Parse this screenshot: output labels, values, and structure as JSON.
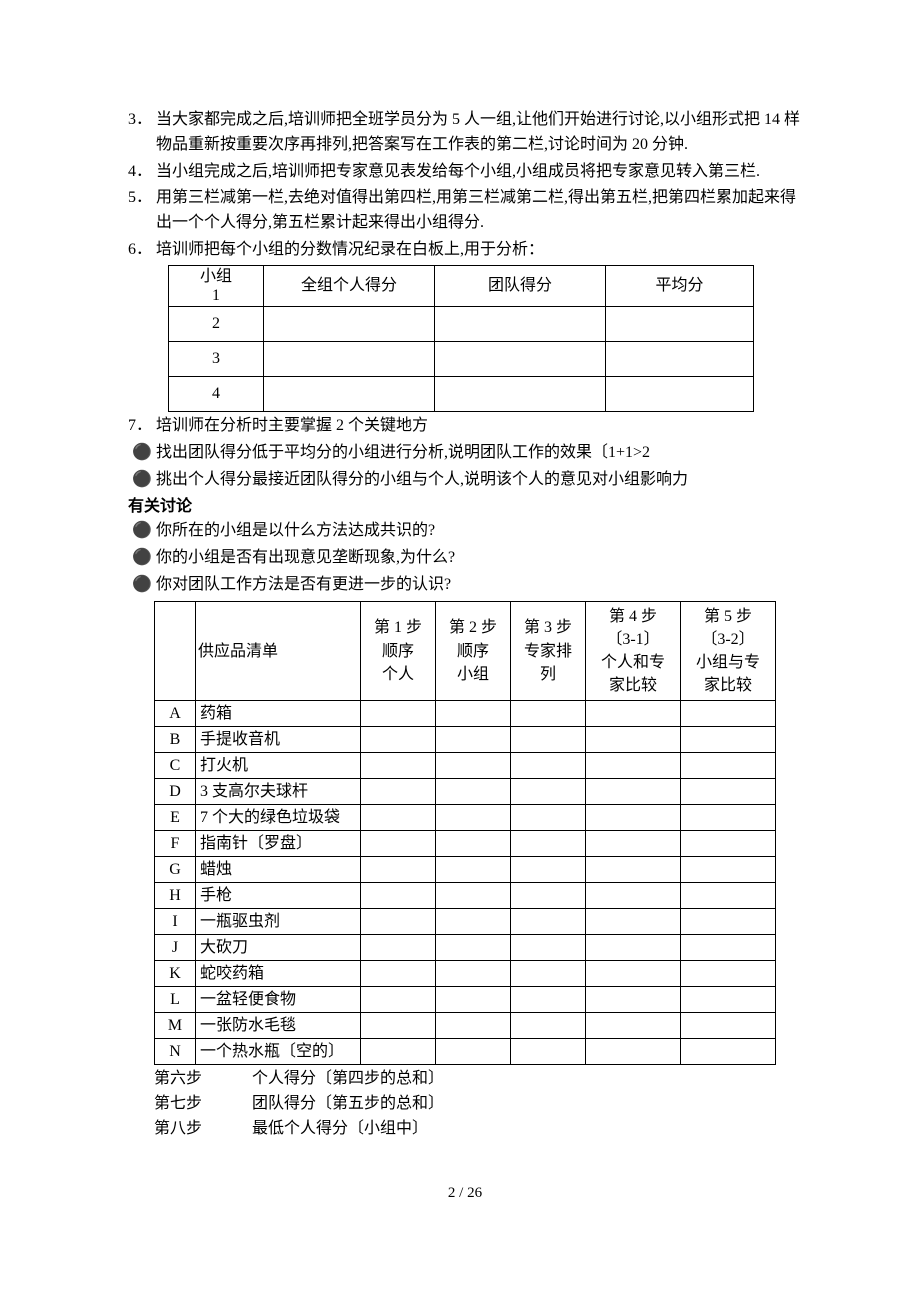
{
  "list1": {
    "items": [
      {
        "num": "3．",
        "text": "当大家都完成之后,培训师把全班学员分为 5 人一组,让他们开始进行讨论,以小组形式把 14 样物品重新按重要次序再排列,把答案写在工作表的第二栏,讨论时间为 20 分钟."
      },
      {
        "num": "4．",
        "text": "当小组完成之后,培训师把专家意见表发给每个小组,小组成员将把专家意见转入第三栏."
      },
      {
        "num": "5．",
        "text": "用第三栏减第一栏,去绝对值得出第四栏,用第三栏减第二栏,得出第五栏,把第四栏累加起来得出一个个人得分,第五栏累计起来得出小组得分."
      },
      {
        "num": "6．",
        "text": "培训师把每个小组的分数情况纪录在白板上,用于分析："
      }
    ]
  },
  "table1": {
    "headers": {
      "c0_a": "小组",
      "c0_b": "1",
      "c1": "全组个人得分",
      "c2": "团队得分",
      "c3": "平均分"
    },
    "rows": [
      {
        "c0": "2"
      },
      {
        "c0": "3"
      },
      {
        "c0": "4"
      }
    ]
  },
  "item7": {
    "num": "7．",
    "text": "培训师在分析时主要掌握 2 个关键地方"
  },
  "bullets1": [
    "找出团队得分低于平均分的小组进行分析,说明团队工作的效果〔1+1>2",
    "挑出个人得分最接近团队得分的小组与个人,说明该个人的意见对小组影响力"
  ],
  "discussHead": "有关讨论",
  "bullets2": [
    "你所在的小组是以什么方法达成共识的?",
    "你的小组是否有出现意见垄断现象,为什么?",
    "你对团队工作方法是否有更进一步的认识?"
  ],
  "table2": {
    "headers": {
      "item": "供应品清单",
      "s1": "第 1 步\n顺序\n个人",
      "s2": "第 2 步\n顺序\n小组",
      "s3": "第 3 步\n专家排列",
      "s4": "第 4 步\n〔3-1〕\n个人和专家比较",
      "s5": "第 5 步\n〔3-2〕\n小组与专家比较"
    },
    "rows": [
      {
        "code": "A",
        "item": "药箱"
      },
      {
        "code": "B",
        "item": "手提收音机"
      },
      {
        "code": "C",
        "item": "打火机"
      },
      {
        "code": "D",
        "item": "3 支高尔夫球杆"
      },
      {
        "code": "E",
        "item": "7 个大的绿色垃圾袋"
      },
      {
        "code": "F",
        "item": "指南针〔罗盘〕"
      },
      {
        "code": "G",
        "item": "蜡烛"
      },
      {
        "code": "H",
        "item": "手枪"
      },
      {
        "code": "I",
        "item": "一瓶驱虫剂"
      },
      {
        "code": "J",
        "item": "大砍刀"
      },
      {
        "code": "K",
        "item": "蛇咬药箱"
      },
      {
        "code": "L",
        "item": "一盆轻便食物"
      },
      {
        "code": "M",
        "item": "一张防水毛毯"
      },
      {
        "code": "N",
        "item": "一个热水瓶〔空的〕"
      }
    ]
  },
  "steps": [
    {
      "label": "第六步",
      "text": "个人得分〔第四步的总和〕"
    },
    {
      "label": "第七步",
      "text": "团队得分〔第五步的总和〕"
    },
    {
      "label": "第八步",
      "text": "最低个人得分〔小组中〕"
    }
  ],
  "footer": "2  /  26"
}
